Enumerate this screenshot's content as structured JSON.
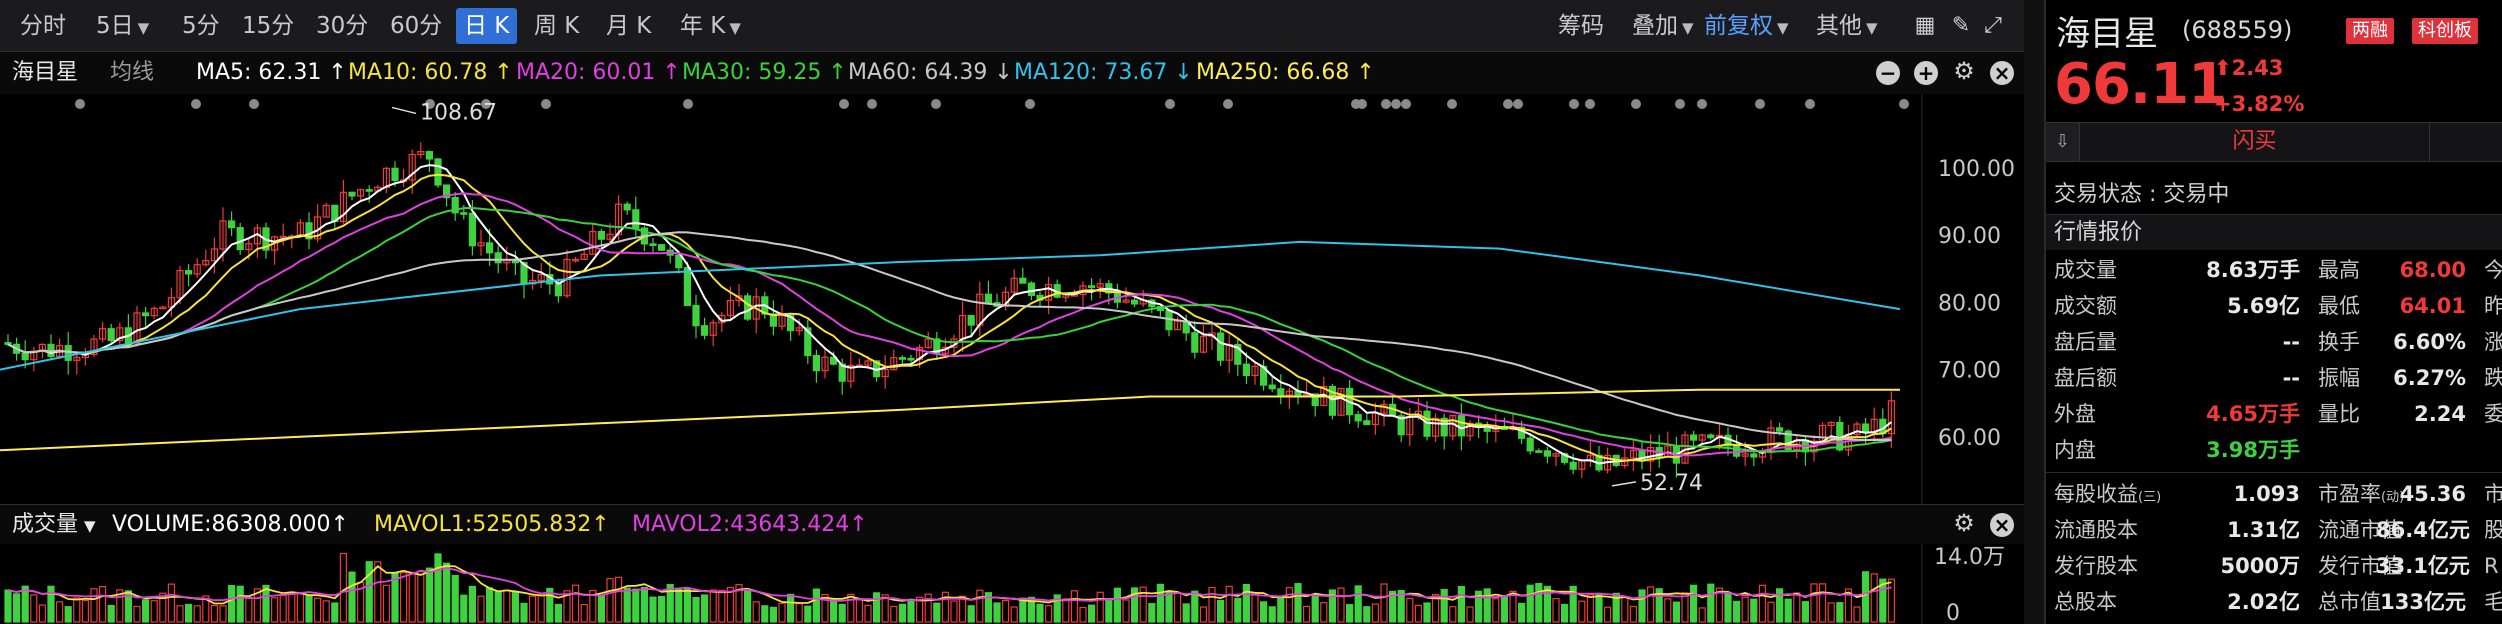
{
  "toolbar": {
    "periods": [
      "分时",
      "5日",
      "5分",
      "15分",
      "30分",
      "60分",
      "日 K",
      "周 K",
      "月 K",
      "年 K"
    ],
    "active_period": "日 K",
    "right": {
      "chip": "筹码",
      "overlay": "叠加",
      "adjust": "前复权",
      "other": "其他"
    }
  },
  "legend": {
    "name": "海目星",
    "ma_type": "均线",
    "items": [
      {
        "text": "MA5: 62.31 ↑",
        "color": "#ffffff"
      },
      {
        "text": "MA10: 60.78 ↑",
        "color": "#f5e23c"
      },
      {
        "text": "MA20: 60.01 ↑",
        "color": "#e040e0"
      },
      {
        "text": "MA30: 59.25 ↑",
        "color": "#3ad23a"
      },
      {
        "text": "MA60: 64.39 ↓",
        "color": "#c8c8c8"
      },
      {
        "text": "MA120: 73.67 ↓",
        "color": "#2ec3e8"
      },
      {
        "text": "MA250: 66.68 ↑",
        "color": "#ffeb55"
      }
    ]
  },
  "price_chart": {
    "y_ticks": [
      "100.00",
      "90.00",
      "80.00",
      "70.00",
      "60.00"
    ],
    "high_label": "108.67",
    "low_label": "52.74"
  },
  "volume": {
    "label": "成交量",
    "items": [
      {
        "text": "VOLUME:86308.000↑",
        "color": "#ffffff"
      },
      {
        "text": "MAVOL1:52505.832↑",
        "color": "#f5e23c"
      },
      {
        "text": "MAVOL2:43643.424↑",
        "color": "#e040e0"
      }
    ],
    "y_top": "14.0万",
    "y_bottom": "0"
  },
  "quote": {
    "name": "海目星",
    "code": "(688559)",
    "badges": [
      "两融",
      "科创板"
    ],
    "price": "66.11",
    "change": "2.43",
    "change_pct": "+3.82%",
    "flash_label": "闪买",
    "status": "交易状态 : 交易中",
    "section": "行情报价",
    "rows": [
      {
        "l1": "成交量",
        "v1": "8.63万手",
        "c1": "",
        "l2": "最高",
        "v2": "68.00",
        "c2": "red",
        "l3": "今"
      },
      {
        "l1": "成交额",
        "v1": "5.69亿",
        "c1": "",
        "l2": "最低",
        "v2": "64.01",
        "c2": "red",
        "l3": "昨"
      },
      {
        "l1": "盘后量",
        "v1": "--",
        "c1": "",
        "l2": "换手",
        "v2": "6.60%",
        "c2": "",
        "l3": "涨"
      },
      {
        "l1": "盘后额",
        "v1": "--",
        "c1": "",
        "l2": "振幅",
        "v2": "6.27%",
        "c2": "",
        "l3": "跌"
      },
      {
        "l1": "外盘",
        "v1": "4.65万手",
        "c1": "red",
        "l2": "量比",
        "v2": "2.24",
        "c2": "",
        "l3": "委"
      },
      {
        "l1": "内盘",
        "v1": "3.98万手",
        "c1": "green",
        "l2": "",
        "v2": "",
        "c2": "",
        "l3": ""
      }
    ],
    "rows2": [
      {
        "l1": "每股收益",
        "sub1": "(三)",
        "v1": "1.093",
        "l2": "市盈率",
        "sub2": "(动)",
        "v2": "45.36",
        "l3": "市"
      },
      {
        "l1": "流通股本",
        "sub1": "",
        "v1": "1.31亿",
        "l2": "流通市值",
        "sub2": "",
        "v2": "86.4亿元",
        "l3": "股"
      },
      {
        "l1": "发行股本",
        "sub1": "",
        "v1": "5000万",
        "l2": "发行市值",
        "sub2": "",
        "v2": "33.1亿元",
        "l3": "R"
      },
      {
        "l1": "总股本",
        "sub1": "",
        "v1": "2.02亿",
        "l2": "总市值",
        "sub2": "",
        "v2": "133亿元",
        "l3": "毛"
      }
    ]
  },
  "colors": {
    "up": "#f03a3a",
    "down": "#3ed23e",
    "accent": "#2f6fd6"
  }
}
